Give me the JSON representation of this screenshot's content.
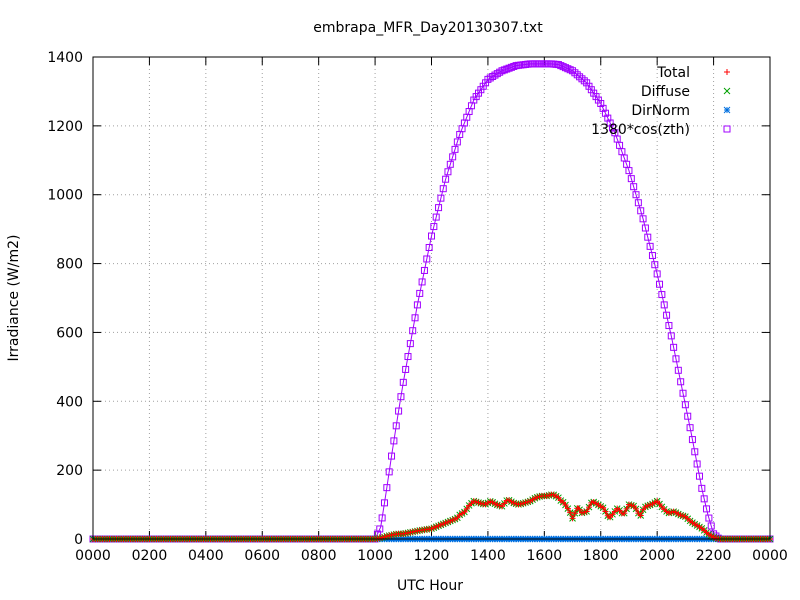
{
  "chart_data": {
    "type": "scatter",
    "title": "embrapa_MFR_Day20130307.txt",
    "xlabel": "UTC Hour",
    "ylabel": "Irradiance (W/m2)",
    "xlim": [
      0,
      24
    ],
    "ylim": [
      0,
      1400
    ],
    "xticks": [
      {
        "value": 0,
        "label": "0000"
      },
      {
        "value": 2,
        "label": "0200"
      },
      {
        "value": 4,
        "label": "0400"
      },
      {
        "value": 6,
        "label": "0600"
      },
      {
        "value": 8,
        "label": "0800"
      },
      {
        "value": 10,
        "label": "1000"
      },
      {
        "value": 12,
        "label": "1200"
      },
      {
        "value": 14,
        "label": "1400"
      },
      {
        "value": 16,
        "label": "1600"
      },
      {
        "value": 18,
        "label": "1800"
      },
      {
        "value": 20,
        "label": "2000"
      },
      {
        "value": 22,
        "label": "2200"
      },
      {
        "value": 24,
        "label": "0000"
      }
    ],
    "yticks": [
      0,
      200,
      400,
      600,
      800,
      1000,
      1200,
      1400
    ],
    "grid": true,
    "legend_position": "top-right",
    "series": [
      {
        "name": "Total",
        "color": "#ff0000",
        "marker": "plus",
        "x": [
          0,
          10.0,
          10.3,
          10.5,
          10.8,
          11.0,
          11.3,
          11.6,
          12.0,
          12.3,
          12.6,
          12.9,
          13.0,
          13.2,
          13.3,
          13.5,
          13.7,
          13.9,
          14.1,
          14.3,
          14.5,
          14.7,
          14.9,
          15.1,
          15.3,
          15.5,
          15.7,
          15.9,
          16.1,
          16.3,
          16.5,
          16.6,
          16.7,
          16.9,
          17.0,
          17.2,
          17.3,
          17.5,
          17.7,
          17.9,
          18.1,
          18.3,
          18.5,
          18.6,
          18.8,
          19.0,
          19.2,
          19.4,
          19.5,
          19.6,
          19.8,
          20.0,
          20.2,
          20.4,
          20.6,
          20.8,
          21.0,
          21.2,
          21.4,
          21.6,
          21.8,
          22.0,
          22.2,
          24
        ],
        "y": [
          0,
          0,
          5,
          10,
          15,
          15,
          20,
          25,
          30,
          40,
          50,
          60,
          70,
          80,
          95,
          110,
          105,
          100,
          110,
          100,
          95,
          115,
          105,
          100,
          105,
          110,
          120,
          125,
          125,
          130,
          120,
          110,
          105,
          80,
          60,
          95,
          75,
          80,
          110,
          100,
          90,
          60,
          80,
          90,
          70,
          100,
          95,
          65,
          85,
          95,
          100,
          110,
          90,
          75,
          80,
          70,
          65,
          50,
          40,
          30,
          15,
          5,
          0,
          0
        ]
      },
      {
        "name": "Diffuse",
        "color": "#00a000",
        "marker": "cross",
        "x": [
          0,
          10.0,
          10.3,
          10.5,
          10.8,
          11.0,
          11.3,
          11.6,
          12.0,
          12.3,
          12.6,
          12.9,
          13.0,
          13.2,
          13.3,
          13.5,
          13.7,
          13.9,
          14.1,
          14.3,
          14.5,
          14.7,
          14.9,
          15.1,
          15.3,
          15.5,
          15.7,
          15.9,
          16.1,
          16.3,
          16.5,
          16.6,
          16.7,
          16.9,
          17.0,
          17.2,
          17.3,
          17.5,
          17.7,
          17.9,
          18.1,
          18.3,
          18.5,
          18.6,
          18.8,
          19.0,
          19.2,
          19.4,
          19.5,
          19.6,
          19.8,
          20.0,
          20.2,
          20.4,
          20.6,
          20.8,
          21.0,
          21.2,
          21.4,
          21.6,
          21.8,
          22.0,
          22.2,
          24
        ],
        "y": [
          0,
          0,
          5,
          10,
          15,
          15,
          20,
          25,
          30,
          40,
          50,
          60,
          70,
          80,
          95,
          110,
          105,
          100,
          110,
          100,
          95,
          115,
          105,
          100,
          105,
          110,
          120,
          125,
          125,
          130,
          120,
          110,
          105,
          80,
          60,
          95,
          75,
          80,
          110,
          100,
          90,
          60,
          80,
          90,
          70,
          100,
          95,
          65,
          85,
          95,
          100,
          110,
          90,
          75,
          80,
          70,
          65,
          50,
          40,
          30,
          15,
          5,
          0,
          0
        ]
      },
      {
        "name": "DirNorm",
        "color": "#0070e0",
        "marker": "star",
        "x": [
          0,
          2,
          4,
          6,
          8,
          10,
          10.5,
          11,
          11.5,
          12,
          12.5,
          13,
          13.5,
          14,
          14.5,
          15,
          15.5,
          16,
          16.5,
          17,
          17.5,
          18,
          18.5,
          19,
          19.5,
          20,
          20.5,
          21,
          21.5,
          22,
          22.5,
          24
        ],
        "y": [
          0,
          0,
          0,
          0,
          0,
          0,
          0,
          0,
          0,
          0,
          0,
          0,
          0,
          0,
          0,
          0,
          0,
          0,
          0,
          0,
          0,
          0,
          0,
          0,
          0,
          0,
          0,
          0,
          0,
          0,
          0,
          0
        ]
      },
      {
        "name": "1380*cos(zth)",
        "color": "#a000ff",
        "marker": "square",
        "x": [
          0,
          2,
          4,
          6,
          8,
          10,
          10.2,
          10.4,
          10.6,
          10.8,
          11.0,
          11.5,
          12.0,
          12.5,
          13.0,
          13.5,
          14.0,
          14.5,
          15.0,
          15.5,
          16.0,
          16.25,
          16.5,
          17.0,
          17.5,
          18.0,
          18.5,
          19.0,
          19.5,
          20.0,
          20.5,
          21.0,
          21.2,
          21.4,
          21.6,
          21.8,
          22.0,
          22.2,
          22.3,
          24
        ],
        "y": [
          0,
          0,
          0,
          0,
          0,
          0,
          35,
          140,
          250,
          355,
          455,
          680,
          880,
          1045,
          1175,
          1275,
          1335,
          1360,
          1375,
          1380,
          1380,
          1380,
          1378,
          1360,
          1325,
          1265,
          1180,
          1070,
          930,
          770,
          590,
          390,
          310,
          225,
          140,
          70,
          15,
          0,
          0,
          0
        ]
      }
    ]
  }
}
